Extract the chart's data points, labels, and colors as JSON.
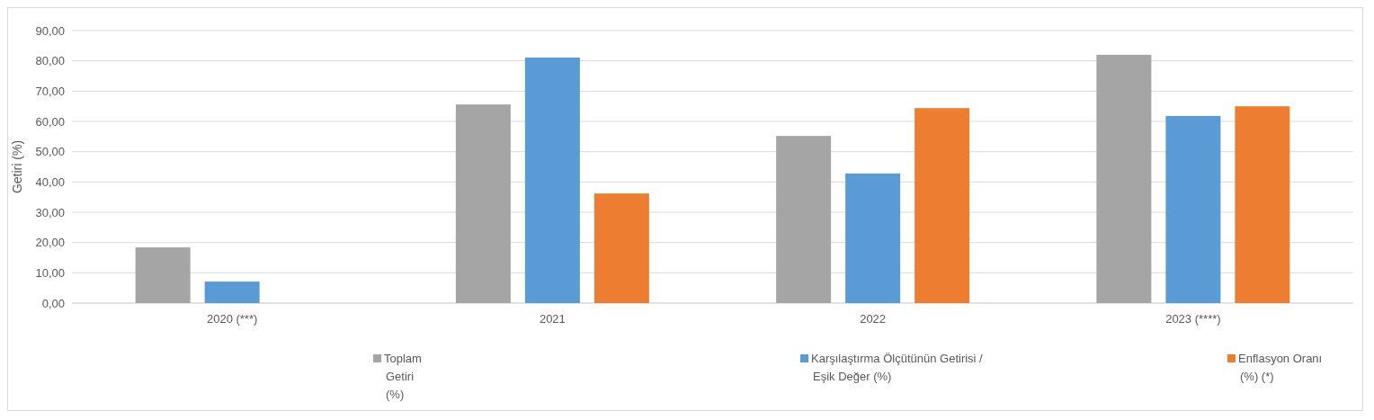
{
  "chart_data": {
    "type": "bar",
    "ylabel": "Getiri (%)",
    "categories": [
      "2020 (***)",
      "2021",
      "2022",
      "2023 (****)"
    ],
    "series": [
      {
        "name": "Toplam Getiri (%)",
        "color": "#a5a5a5",
        "values": [
          18.4,
          65.6,
          55.2,
          82.0
        ]
      },
      {
        "name": "Karşılaştırma Ölçütünün Getirisi / Eşik Değer (%)",
        "color": "#5b9bd5",
        "values": [
          7.1,
          81.1,
          42.8,
          61.8
        ]
      },
      {
        "name": "Enflasyon Oranı (%) (*)",
        "color": "#ed7d31",
        "values": [
          null,
          36.2,
          64.4,
          65.0
        ]
      }
    ],
    "ylim": [
      0,
      90
    ],
    "yticks": [
      {
        "value": 0,
        "label": "0,00"
      },
      {
        "value": 10,
        "label": "10,00"
      },
      {
        "value": 20,
        "label": "20,00"
      },
      {
        "value": 30,
        "label": "30,00"
      },
      {
        "value": 40,
        "label": "40,00"
      },
      {
        "value": 50,
        "label": "50,00"
      },
      {
        "value": 60,
        "label": "60,00"
      },
      {
        "value": 70,
        "label": "70,00"
      },
      {
        "value": 80,
        "label": "80,00"
      },
      {
        "value": 90,
        "label": "90,00"
      }
    ],
    "grid": "y",
    "legend": "bottom"
  }
}
